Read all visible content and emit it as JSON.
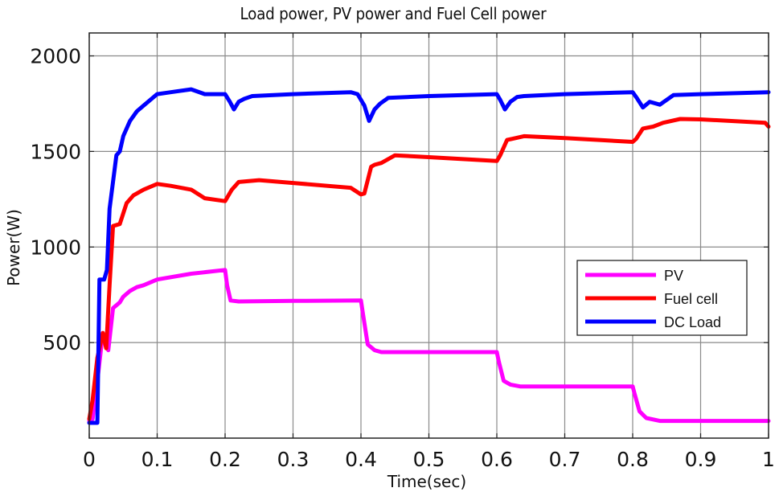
{
  "chart_data": {
    "type": "line",
    "title": "Load power, PV power and Fuel Cell power",
    "xlabel": "Time(sec)",
    "ylabel": "Power(W)",
    "xlim": [
      0,
      1
    ],
    "ylim": [
      0,
      2120
    ],
    "grid": true,
    "legend_position": "center-right",
    "x_ticks": [
      0,
      0.1,
      0.2,
      0.3,
      0.4,
      0.5,
      0.6,
      0.7,
      0.8,
      0.9,
      1
    ],
    "x_tick_labels": [
      "0",
      "0.1",
      "0.2",
      "0.3",
      "0.4",
      "0.5",
      "0.6",
      "0.7",
      "0.8",
      "0.9",
      "1"
    ],
    "y_ticks": [
      500,
      1000,
      1500,
      2000
    ],
    "y_tick_labels": [
      "500",
      "1000",
      "1500",
      "2000"
    ],
    "series": [
      {
        "name": "PV",
        "color": "#ff00ff",
        "x": [
          0,
          0.005,
          0.012,
          0.02,
          0.028,
          0.035,
          0.045,
          0.05,
          0.06,
          0.07,
          0.08,
          0.1,
          0.15,
          0.2,
          0.203,
          0.208,
          0.22,
          0.3,
          0.4,
          0.403,
          0.41,
          0.42,
          0.43,
          0.5,
          0.6,
          0.603,
          0.61,
          0.62,
          0.635,
          0.7,
          0.8,
          0.803,
          0.81,
          0.82,
          0.84,
          0.9,
          1.0
        ],
        "y": [
          90,
          100,
          300,
          550,
          460,
          680,
          710,
          740,
          770,
          790,
          800,
          830,
          860,
          880,
          800,
          720,
          715,
          718,
          720,
          650,
          490,
          460,
          450,
          450,
          450,
          400,
          300,
          280,
          270,
          270,
          270,
          230,
          140,
          105,
          90,
          90,
          90
        ]
      },
      {
        "name": "Fuel cell",
        "color": "#ff0000",
        "x": [
          0,
          0.005,
          0.012,
          0.02,
          0.025,
          0.03,
          0.035,
          0.045,
          0.055,
          0.065,
          0.08,
          0.1,
          0.12,
          0.15,
          0.17,
          0.2,
          0.21,
          0.22,
          0.25,
          0.3,
          0.385,
          0.4,
          0.405,
          0.415,
          0.42,
          0.43,
          0.45,
          0.5,
          0.6,
          0.605,
          0.615,
          0.64,
          0.7,
          0.8,
          0.805,
          0.815,
          0.83,
          0.845,
          0.87,
          0.9,
          0.995,
          1.0
        ],
        "y": [
          100,
          200,
          420,
          550,
          470,
          800,
          1110,
          1120,
          1230,
          1270,
          1300,
          1330,
          1320,
          1300,
          1255,
          1240,
          1300,
          1340,
          1350,
          1335,
          1310,
          1275,
          1280,
          1420,
          1430,
          1440,
          1480,
          1470,
          1450,
          1480,
          1560,
          1580,
          1570,
          1550,
          1565,
          1620,
          1630,
          1650,
          1670,
          1668,
          1650,
          1630
        ]
      },
      {
        "name": "DC Load",
        "color": "#0000ff",
        "x": [
          0,
          0.005,
          0.012,
          0.015,
          0.022,
          0.026,
          0.03,
          0.04,
          0.045,
          0.05,
          0.06,
          0.07,
          0.08,
          0.1,
          0.12,
          0.15,
          0.17,
          0.2,
          0.207,
          0.213,
          0.22,
          0.228,
          0.24,
          0.3,
          0.385,
          0.395,
          0.405,
          0.412,
          0.42,
          0.428,
          0.44,
          0.5,
          0.6,
          0.605,
          0.612,
          0.62,
          0.63,
          0.64,
          0.7,
          0.8,
          0.806,
          0.815,
          0.825,
          0.84,
          0.86,
          0.9,
          1.0
        ],
        "y": [
          80,
          80,
          80,
          830,
          830,
          880,
          1200,
          1480,
          1500,
          1580,
          1660,
          1710,
          1740,
          1800,
          1810,
          1825,
          1800,
          1800,
          1760,
          1720,
          1760,
          1775,
          1790,
          1800,
          1810,
          1800,
          1740,
          1660,
          1720,
          1750,
          1780,
          1790,
          1800,
          1770,
          1720,
          1760,
          1785,
          1790,
          1800,
          1810,
          1780,
          1730,
          1760,
          1745,
          1795,
          1800,
          1810
        ]
      }
    ]
  },
  "legend": {
    "items": [
      {
        "label": "PV",
        "color": "#ff00ff"
      },
      {
        "label": "Fuel cell",
        "color": "#ff0000"
      },
      {
        "label": "DC Load",
        "color": "#0000ff"
      }
    ]
  }
}
